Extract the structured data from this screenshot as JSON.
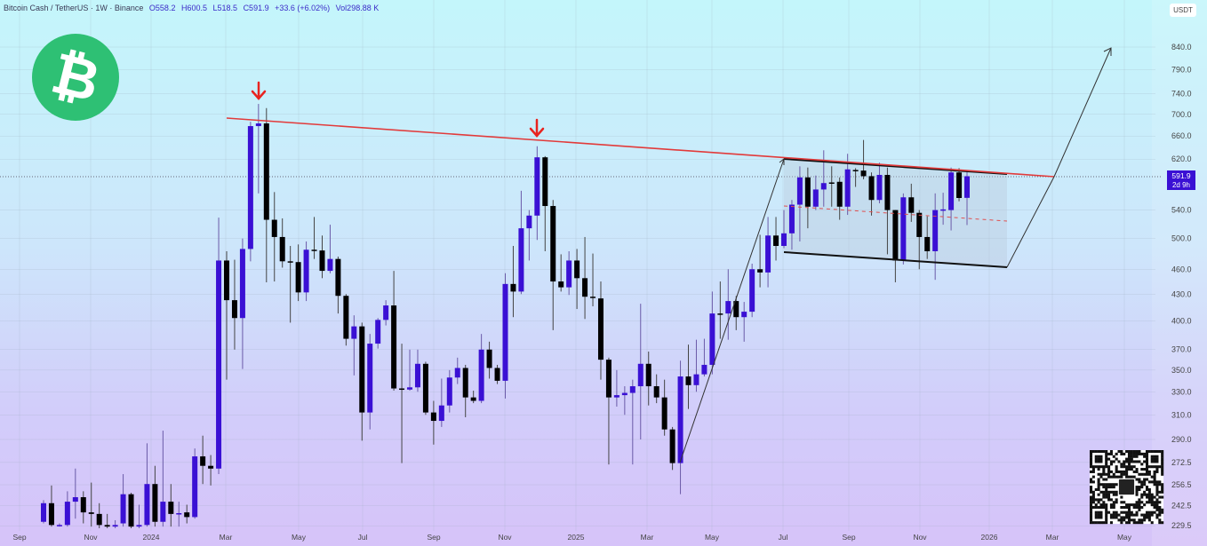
{
  "header": {
    "symbol": "Bitcoin Cash / TetherUS · 1W · Binance",
    "open": "O558.2",
    "high": "H600.5",
    "low": "L518.5",
    "close": "C591.9",
    "change": "+33.6 (+6.02%)",
    "volume": "Vol298.88 K"
  },
  "currency_label": "USDT",
  "price_label": {
    "price": "591.9",
    "countdown": "2d 9h"
  },
  "colors": {
    "up": "#3a10d4",
    "down": "#000000",
    "resistance": "#e23a3a",
    "marker": "#e8231f",
    "logo": "#2ec074",
    "price_label_bg": "#3a10d4"
  },
  "logo_icon": "bitcoin-cash-icon",
  "chart_data": {
    "type": "candlestick",
    "title": "",
    "interval": "1W",
    "y_scale": "log",
    "ylim": [
      229.5,
      870
    ],
    "grid": true,
    "y_ticks": [
      840.0,
      790.0,
      740.0,
      700.0,
      660.0,
      620.0,
      540.0,
      500.0,
      460.0,
      430.0,
      400.0,
      370.0,
      350.0,
      330.0,
      310.0,
      290.0,
      272.5,
      256.5,
      242.5,
      229.5
    ],
    "y_tick_labels": [
      "840.0",
      "790.0",
      "740.0",
      "700.0",
      "660.0",
      "620.0",
      "540.0",
      "500.0",
      "460.0",
      "430.0",
      "400.0",
      "370.0",
      "350.0",
      "330.0",
      "310.0",
      "290.0",
      "272.5",
      "256.5",
      "242.5",
      "229.5"
    ],
    "x_tick_labels": [
      "Sep",
      "Nov",
      "2024",
      "Mar",
      "May",
      "Jul",
      "Sep",
      "Nov",
      "2025",
      "Mar",
      "May",
      "Jul",
      "Sep",
      "Nov",
      "2026",
      "Mar",
      "May"
    ],
    "last_price": 591.9,
    "ohlc_fields": [
      "open",
      "high",
      "low",
      "close"
    ],
    "candles": [
      [
        232,
        246,
        231,
        244
      ],
      [
        244,
        256,
        229,
        230
      ],
      [
        230,
        231,
        229,
        230
      ],
      [
        230,
        252,
        229,
        245
      ],
      [
        245,
        268,
        234,
        248
      ],
      [
        248,
        252,
        231,
        238
      ],
      [
        238,
        258,
        229,
        237
      ],
      [
        237,
        244,
        228,
        230
      ],
      [
        230,
        237,
        228,
        229
      ],
      [
        229,
        233,
        228,
        230
      ],
      [
        231,
        264,
        229,
        250
      ],
      [
        250,
        251,
        228,
        229
      ],
      [
        229,
        243,
        228,
        230
      ],
      [
        230,
        287,
        229,
        257
      ],
      [
        257,
        270,
        229,
        232
      ],
      [
        232,
        297,
        229,
        245
      ],
      [
        245,
        257,
        229,
        237
      ],
      [
        237,
        245,
        229,
        237.5
      ],
      [
        238,
        243,
        231,
        235
      ],
      [
        235,
        283,
        234,
        277
      ],
      [
        277,
        293,
        257,
        270
      ],
      [
        270,
        278,
        256,
        268
      ],
      [
        268,
        529,
        264,
        471
      ],
      [
        471,
        483,
        341,
        423
      ],
      [
        423,
        472,
        370,
        403
      ],
      [
        403,
        500,
        351,
        486
      ],
      [
        486,
        686,
        470,
        678
      ],
      [
        678,
        720,
        565,
        683
      ],
      [
        683,
        712,
        444,
        526
      ],
      [
        526,
        567,
        445,
        502
      ],
      [
        502,
        528,
        462,
        470
      ],
      [
        470,
        490,
        398,
        469
      ],
      [
        469,
        492,
        422,
        432
      ],
      [
        432,
        496,
        422,
        485
      ],
      [
        485,
        530,
        473,
        484
      ],
      [
        484,
        504,
        449,
        458
      ],
      [
        458,
        519,
        455,
        473
      ],
      [
        473,
        476,
        408,
        428
      ],
      [
        428,
        430,
        374,
        381
      ],
      [
        381,
        406,
        345,
        394
      ],
      [
        394,
        398,
        289,
        312
      ],
      [
        312,
        386,
        298,
        376
      ],
      [
        376,
        403,
        371,
        401
      ],
      [
        401,
        423,
        395,
        417
      ],
      [
        417,
        458,
        331,
        333
      ],
      [
        333,
        376,
        272,
        332
      ],
      [
        332,
        370,
        331,
        334
      ],
      [
        334,
        370,
        330,
        356
      ],
      [
        356,
        358,
        310,
        312
      ],
      [
        312,
        322,
        286,
        305
      ],
      [
        305,
        342,
        300,
        318
      ],
      [
        318,
        350,
        312,
        343
      ],
      [
        343,
        362,
        337,
        352
      ],
      [
        352,
        355,
        308,
        325
      ],
      [
        325,
        331,
        320,
        322
      ],
      [
        322,
        386,
        320,
        370
      ],
      [
        370,
        378,
        342,
        352
      ],
      [
        352,
        355,
        337,
        340
      ],
      [
        340,
        455,
        324,
        442
      ],
      [
        442,
        490,
        404,
        433
      ],
      [
        433,
        569,
        430,
        514
      ],
      [
        514,
        540,
        471,
        532
      ],
      [
        532,
        642,
        498,
        623
      ],
      [
        623,
        625,
        483,
        546
      ],
      [
        546,
        555,
        390,
        445
      ],
      [
        445,
        479,
        433,
        438
      ],
      [
        438,
        483,
        429,
        471
      ],
      [
        471,
        486,
        413,
        449
      ],
      [
        449,
        502,
        402,
        427
      ],
      [
        427,
        480,
        416,
        426
      ],
      [
        425,
        445,
        341,
        360
      ],
      [
        360,
        362,
        271,
        325
      ],
      [
        325,
        350,
        317,
        327
      ],
      [
        327,
        335,
        310,
        329
      ],
      [
        329,
        341,
        271,
        335
      ],
      [
        335,
        419,
        290,
        356
      ],
      [
        356,
        368,
        318,
        335
      ],
      [
        335,
        346,
        320,
        325
      ],
      [
        325,
        341,
        293,
        298
      ],
      [
        298,
        300,
        267,
        272
      ],
      [
        272,
        359,
        250,
        344
      ],
      [
        344,
        375,
        315,
        336
      ],
      [
        336,
        380,
        330,
        346
      ],
      [
        346,
        381,
        344,
        355
      ],
      [
        355,
        433,
        346,
        408
      ],
      [
        408,
        445,
        381,
        407
      ],
      [
        408,
        460,
        380,
        422
      ],
      [
        422,
        428,
        390,
        404
      ],
      [
        404,
        421,
        378,
        410
      ],
      [
        410,
        467,
        404,
        460
      ],
      [
        460,
        505,
        438,
        456
      ],
      [
        456,
        530,
        438,
        504
      ],
      [
        504,
        530,
        471,
        490
      ],
      [
        490,
        540,
        487,
        507
      ],
      [
        507,
        555,
        485,
        548
      ],
      [
        548,
        608,
        496,
        590
      ],
      [
        590,
        606,
        514,
        545
      ],
      [
        545,
        593,
        540,
        571
      ],
      [
        571,
        635,
        545,
        581
      ],
      [
        582,
        608,
        545,
        581
      ],
      [
        583,
        590,
        526,
        545
      ],
      [
        545,
        629,
        533,
        603
      ],
      [
        602,
        605,
        575,
        601
      ],
      [
        601,
        653,
        587,
        592
      ],
      [
        592,
        598,
        532,
        555
      ],
      [
        555,
        614,
        550,
        594
      ],
      [
        594,
        606,
        479,
        540
      ],
      [
        540,
        540,
        444,
        471
      ],
      [
        471,
        565,
        466,
        559
      ],
      [
        559,
        580,
        523,
        536
      ],
      [
        536,
        540,
        460,
        502
      ],
      [
        502,
        531,
        473,
        483
      ],
      [
        483,
        565,
        447,
        540
      ],
      [
        540,
        566,
        519,
        541
      ],
      [
        540,
        606,
        511,
        598
      ],
      [
        598,
        605,
        553,
        558
      ],
      [
        558.2,
        600.5,
        518.5,
        591.9
      ]
    ]
  }
}
